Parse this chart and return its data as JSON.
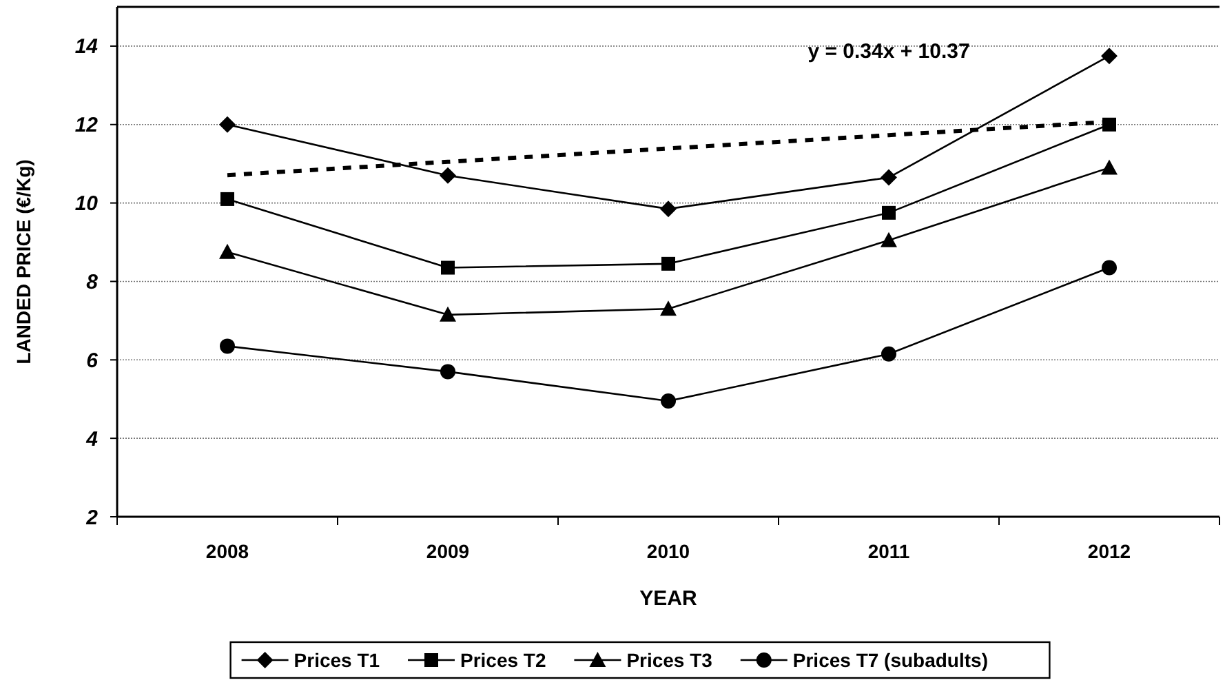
{
  "chart_data": {
    "type": "line",
    "xlabel": "YEAR",
    "ylabel": "LANDED PRICE (€/Kg)",
    "categories": [
      "2008",
      "2009",
      "2010",
      "2011",
      "2012"
    ],
    "ylim": [
      2,
      15
    ],
    "yticks": [
      2,
      4,
      6,
      8,
      10,
      12,
      14
    ],
    "grid": "y",
    "legend": "bottom",
    "line_style": "solid",
    "series": [
      {
        "name": "Prices T1",
        "color": "#000000",
        "marker": "diamond",
        "values": [
          12.0,
          10.7,
          9.85,
          10.65,
          13.75
        ]
      },
      {
        "name": "Prices T2",
        "color": "#000000",
        "marker": "square",
        "values": [
          10.1,
          8.35,
          8.45,
          9.75,
          12.0
        ]
      },
      {
        "name": "Prices T3",
        "color": "#000000",
        "marker": "triangle",
        "values": [
          8.75,
          7.15,
          7.3,
          9.05,
          10.9
        ]
      },
      {
        "name": "Prices T7 (subadults)",
        "color": "#000000",
        "marker": "circle",
        "values": [
          6.35,
          5.7,
          4.95,
          6.15,
          8.35
        ]
      },
      {
        "color": "#000000",
        "marker": "none",
        "line_style": "dashed",
        "values": [
          10.71,
          11.05,
          11.39,
          11.73,
          12.07
        ]
      }
    ],
    "annotations": [
      "y = 0.34x + 10.37"
    ]
  }
}
